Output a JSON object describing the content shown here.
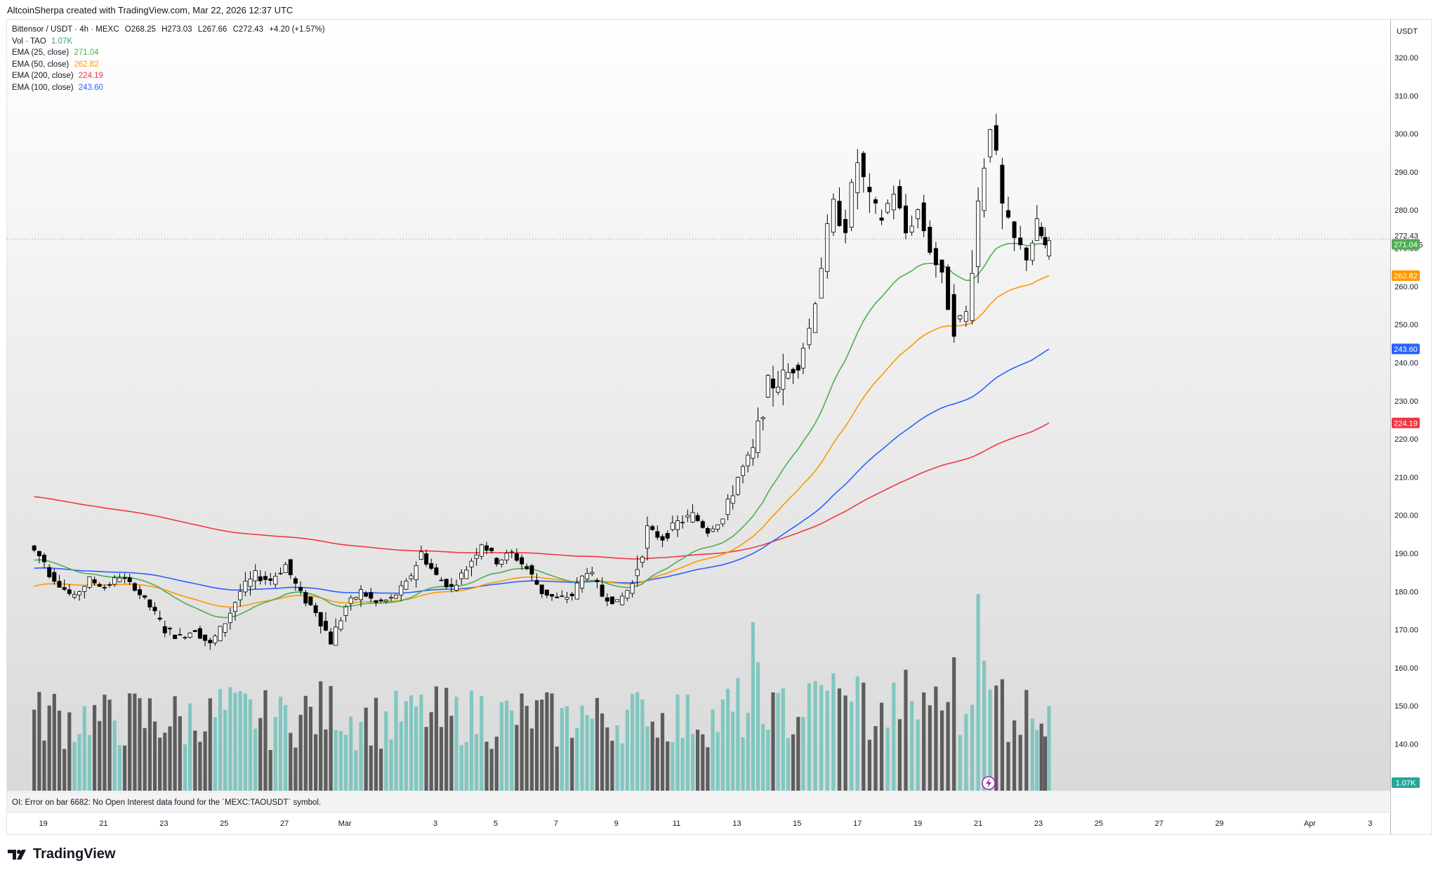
{
  "header": {
    "credit": "AltcoinSherpa created with TradingView.com, Mar 22, 2026 12:37 UTC"
  },
  "legend": {
    "symbol": "Bittensor / USDT · 4h · MEXC",
    "open_label": "O",
    "open": "268.25",
    "high_label": "H",
    "high": "273.03",
    "low_label": "L",
    "low": "267.66",
    "close_label": "C",
    "close": "272.43",
    "change": "+4.20 (+1.57%)",
    "vol_label": "Vol · TAO",
    "vol_value": "1.07K",
    "ema25_label": "EMA (25, close)",
    "ema25_value": "271.04",
    "ema50_label": "EMA (50, close)",
    "ema50_value": "262.82",
    "ema200_label": "EMA (200, close)",
    "ema200_value": "224.19",
    "ema100_label": "EMA (100, close)",
    "ema100_value": "243.60"
  },
  "price_axis": {
    "currency": "USDT",
    "current_price": "272.43",
    "countdown": "03:22:15",
    "volume_tag": "1.07K"
  },
  "oi_message": "OI: Error on bar 6682: No Open Interest data found for the `MEXC:TAOUSDT` symbol.",
  "brand": {
    "name": "TradingView"
  },
  "colors": {
    "up": "#ffffff",
    "down": "#000000",
    "ema25": "#4caf50",
    "ema50": "#ff9800",
    "ema200": "#f23645",
    "ema100": "#2962ff",
    "vol_up": "#80c7c0",
    "vol_down": "#5d5d5d"
  },
  "chart_data": {
    "type": "candlestick",
    "timeframe": "4h",
    "symbol": "TAO/USDT",
    "y_range": [
      130,
      325
    ],
    "y_ticks": [
      140,
      150,
      160,
      170,
      180,
      190,
      200,
      210,
      220,
      230,
      240,
      250,
      260,
      270,
      280,
      290,
      300,
      310,
      320
    ],
    "x_ticks": [
      "19",
      "21",
      "23",
      "25",
      "27",
      "Mar",
      "3",
      "5",
      "7",
      "9",
      "11",
      "13",
      "15",
      "17",
      "19",
      "21",
      "23",
      "25",
      "27",
      "29",
      "Apr",
      "3"
    ],
    "x_tick_days": [
      -11,
      -9,
      -7,
      -5,
      -3,
      -1,
      2,
      4,
      6,
      8,
      10,
      12,
      14,
      16,
      18,
      20,
      22,
      24,
      26,
      28,
      31,
      33
    ],
    "anchors": [
      [
        -11.3,
        192,
        196,
        186,
        188
      ],
      [
        -10.8,
        186,
        189,
        181,
        182
      ],
      [
        -10.3,
        182,
        186,
        176,
        178
      ],
      [
        -9.8,
        179,
        184,
        175,
        183
      ],
      [
        -9.3,
        183,
        185,
        180,
        181
      ],
      [
        -8.8,
        181,
        185,
        178,
        184
      ],
      [
        -8.3,
        184,
        186,
        180,
        181
      ],
      [
        -7.8,
        181,
        182,
        175,
        176
      ],
      [
        -7.3,
        176,
        178,
        168,
        170
      ],
      [
        -6.8,
        170,
        174,
        165,
        168
      ],
      [
        -6.3,
        168,
        172,
        166,
        170
      ],
      [
        -5.8,
        170,
        172,
        163,
        166
      ],
      [
        -5.3,
        166,
        174,
        165,
        172
      ],
      [
        -4.8,
        172,
        182,
        170,
        180
      ],
      [
        -4.3,
        180,
        190,
        178,
        184
      ],
      [
        -3.8,
        184,
        188,
        180,
        183
      ],
      [
        -3.3,
        183,
        191,
        181,
        187
      ],
      [
        -2.8,
        187,
        189,
        177,
        179
      ],
      [
        -2.3,
        179,
        181,
        172,
        175
      ],
      [
        -1.8,
        175,
        177,
        165,
        167
      ],
      [
        -1.3,
        167,
        178,
        166,
        176
      ],
      [
        -0.8,
        176,
        183,
        174,
        180
      ],
      [
        -0.3,
        180,
        182,
        175,
        177
      ],
      [
        0.2,
        177,
        180,
        173,
        178
      ],
      [
        0.7,
        178,
        184,
        176,
        182
      ],
      [
        1.2,
        182,
        195,
        181,
        190
      ],
      [
        1.7,
        190,
        192,
        182,
        184
      ],
      [
        2.2,
        184,
        186,
        178,
        181
      ],
      [
        2.7,
        181,
        188,
        180,
        186
      ],
      [
        3.2,
        186,
        196,
        184,
        193
      ],
      [
        3.7,
        193,
        195,
        186,
        188
      ],
      [
        4.2,
        188,
        194,
        185,
        190
      ],
      [
        4.7,
        190,
        192,
        184,
        186
      ],
      [
        5.2,
        186,
        188,
        177,
        180
      ],
      [
        5.7,
        180,
        182,
        175,
        178
      ],
      [
        6.2,
        178,
        181,
        174,
        179
      ],
      [
        6.7,
        179,
        190,
        178,
        186
      ],
      [
        7.2,
        186,
        188,
        177,
        179
      ],
      [
        7.7,
        179,
        181,
        174,
        177
      ],
      [
        8.2,
        177,
        183,
        176,
        182
      ],
      [
        8.7,
        182,
        200,
        181,
        196
      ],
      [
        9.2,
        196,
        199,
        190,
        194
      ],
      [
        9.7,
        194,
        203,
        192,
        198
      ],
      [
        10.2,
        198,
        205,
        195,
        200
      ],
      [
        10.7,
        200,
        203,
        194,
        196
      ],
      [
        11.2,
        196,
        201,
        195,
        199
      ],
      [
        11.7,
        199,
        212,
        198,
        210
      ],
      [
        12.2,
        210,
        220,
        208,
        217
      ],
      [
        12.7,
        217,
        237,
        215,
        234
      ],
      [
        13.2,
        234,
        252,
        228,
        236
      ],
      [
        13.7,
        236,
        248,
        232,
        240
      ],
      [
        14.2,
        240,
        252,
        237,
        249
      ],
      [
        14.6,
        249,
        270,
        248,
        266
      ],
      [
        15.0,
        266,
        293,
        262,
        280
      ],
      [
        15.4,
        280,
        288,
        268,
        276
      ],
      [
        15.8,
        276,
        296,
        270,
        293
      ],
      [
        16.2,
        293,
        300,
        274,
        282
      ],
      [
        16.6,
        282,
        290,
        273,
        278
      ],
      [
        17.0,
        278,
        287,
        271,
        285
      ],
      [
        17.4,
        285,
        288,
        270,
        274
      ],
      [
        17.8,
        274,
        285,
        270,
        280
      ],
      [
        18.2,
        280,
        284,
        266,
        270
      ],
      [
        18.6,
        270,
        274,
        258,
        262
      ],
      [
        19.0,
        262,
        270,
        244,
        250
      ],
      [
        19.4,
        250,
        256,
        243,
        253
      ],
      [
        19.8,
        253,
        286,
        250,
        282
      ],
      [
        20.2,
        282,
        310,
        278,
        304
      ],
      [
        20.6,
        304,
        307,
        275,
        280
      ],
      [
        21.0,
        280,
        284,
        266,
        272
      ],
      [
        21.4,
        272,
        280,
        264,
        268
      ],
      [
        21.8,
        268,
        282,
        265,
        276
      ],
      [
        22.1,
        276,
        283,
        260,
        270
      ],
      [
        22.35,
        268,
        273,
        267,
        272
      ]
    ],
    "ema25_last": 271.04,
    "ema50_last": 262.82,
    "ema100_last": 243.6,
    "ema200_last": 224.19,
    "volume_highlights": [
      {
        "day": 12.5,
        "value": 1.55
      },
      {
        "day": 15.7,
        "value": 2.1
      },
      {
        "day": 20.05,
        "value": 1.85
      }
    ]
  }
}
